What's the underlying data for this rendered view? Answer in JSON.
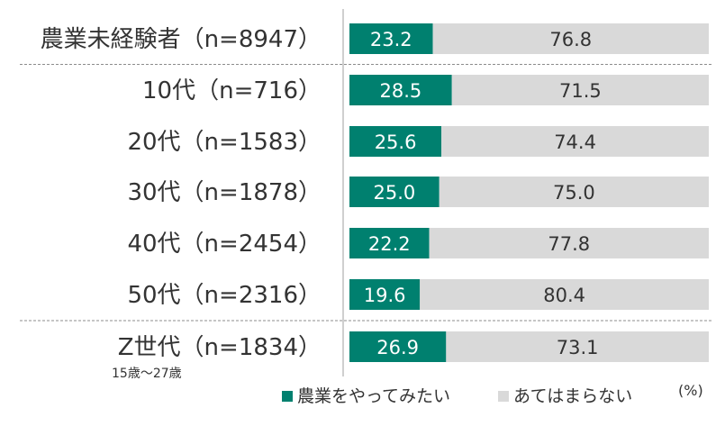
{
  "chart_data": {
    "type": "bar",
    "orientation": "horizontal",
    "stacked": true,
    "categories": [
      "農業未経験者（n=8947）",
      "10代（n=716）",
      "20代（n=1583）",
      "30代（n=1878）",
      "40代（n=2454）",
      "50代（n=2316）",
      "Z世代（n=1834）"
    ],
    "category_notes": [
      "",
      "",
      "",
      "",
      "",
      "",
      "15歳〜27歳"
    ],
    "series": [
      {
        "name": "農業をやってみたい",
        "color": "#00806f",
        "values": [
          23.2,
          28.5,
          25.6,
          25.0,
          22.2,
          19.6,
          26.9
        ],
        "labels": [
          "23.2",
          "28.5",
          "25.6",
          "25.0",
          "22.2",
          "19.6",
          "26.9"
        ]
      },
      {
        "name": "あてはまらない",
        "color": "#d9d9d9",
        "values": [
          76.8,
          71.5,
          74.4,
          75.0,
          77.8,
          80.4,
          73.1
        ],
        "labels": [
          "76.8",
          "71.5",
          "74.4",
          "75.0",
          "77.8",
          "80.4",
          "73.1"
        ]
      }
    ],
    "unit": "(%)",
    "xlim": [
      0,
      100
    ],
    "legend": "bottom",
    "grid": false,
    "separators_after": [
      0,
      5
    ]
  }
}
